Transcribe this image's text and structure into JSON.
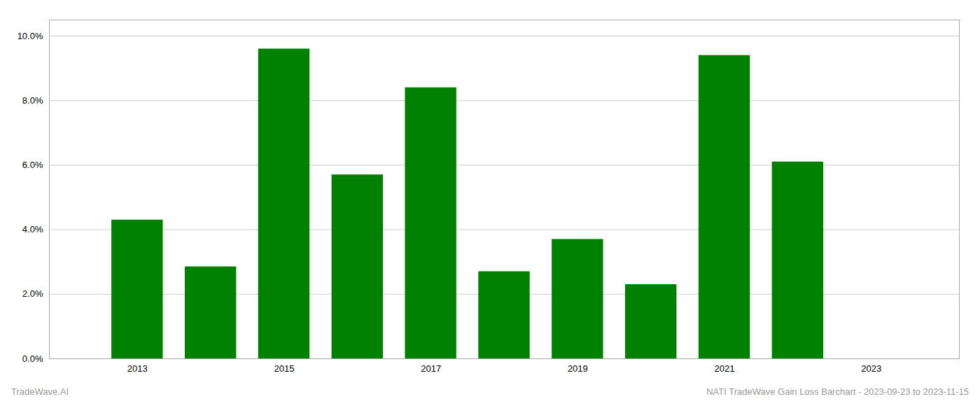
{
  "chart_data": {
    "type": "bar",
    "x": [
      2013,
      2014,
      2015,
      2016,
      2017,
      2018,
      2019,
      2020,
      2021,
      2022,
      2023
    ],
    "values": [
      0.043,
      0.0285,
      0.096,
      0.057,
      0.084,
      0.027,
      0.037,
      0.023,
      0.094,
      0.061,
      0.0
    ],
    "color": "#008000",
    "xlim": [
      2011.8,
      2024.2
    ],
    "xticks": [
      2013,
      2015,
      2017,
      2019,
      2021,
      2023
    ],
    "ylim": [
      0.0,
      0.105
    ],
    "yticks": [
      {
        "value": 0.0,
        "label": "0.0%"
      },
      {
        "value": 0.02,
        "label": "2.0%"
      },
      {
        "value": 0.04,
        "label": "4.0%"
      },
      {
        "value": 0.06,
        "label": "6.0%"
      },
      {
        "value": 0.08,
        "label": "8.0%"
      },
      {
        "value": 0.1,
        "label": "10.0%"
      }
    ],
    "grid": true,
    "annotations": [
      "TradeWave.AI",
      "NATI TradeWave Gain Loss Barchart - 2023-09-23 to 2023-11-15"
    ]
  }
}
